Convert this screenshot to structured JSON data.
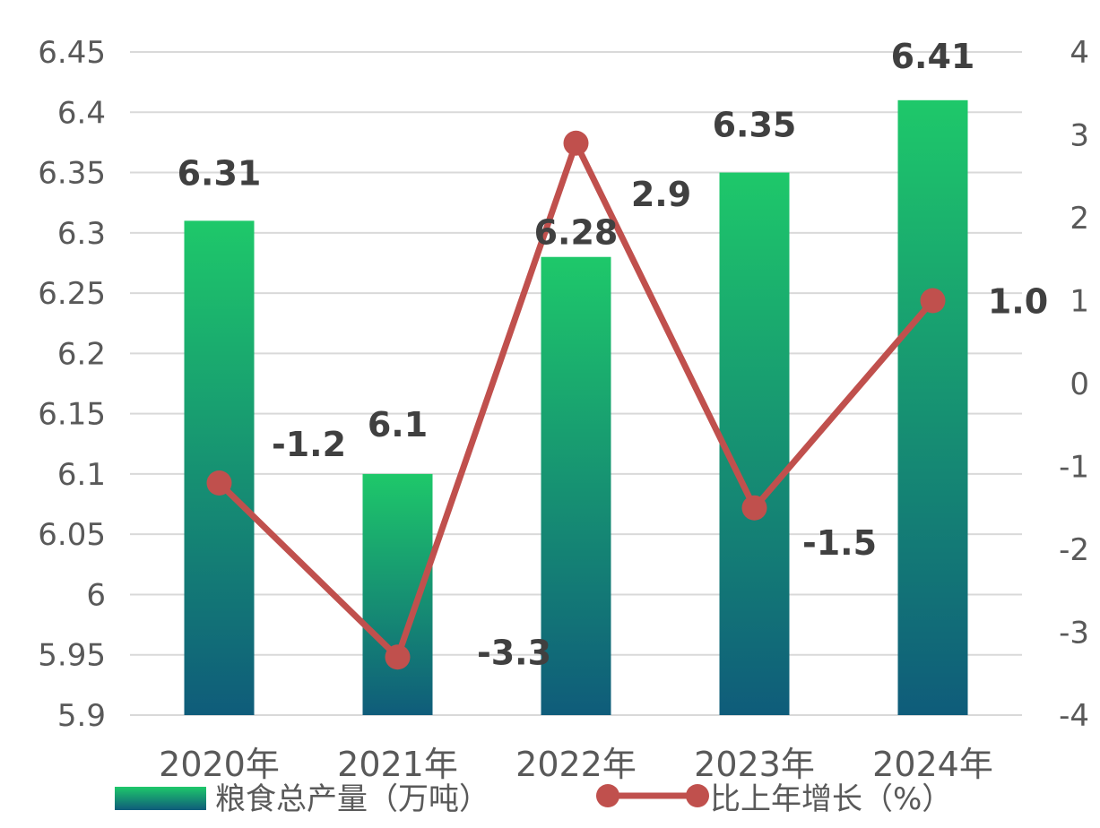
{
  "chart_data": {
    "type": "bar",
    "categories": [
      "2020年",
      "2021年",
      "2022年",
      "2023年",
      "2024年"
    ],
    "series": [
      {
        "name": "粮食总产量（万吨）",
        "type": "bar",
        "axis": "left",
        "values": [
          6.31,
          6.1,
          6.28,
          6.35,
          6.41
        ],
        "labels": [
          "6.31",
          "6.1",
          "6.28",
          "6.35",
          "6.41"
        ],
        "color_top": "#1ec86a",
        "color_bottom": "#0f5c7a"
      },
      {
        "name": "比上年增长（%）",
        "type": "line",
        "axis": "right",
        "values": [
          -1.2,
          -3.3,
          2.9,
          -1.5,
          1.0
        ],
        "labels": [
          "-1.2",
          "-3.3",
          "2.9",
          "-1.5",
          "1.0"
        ],
        "color": "#c0504d"
      }
    ],
    "y_left": {
      "min": 5.9,
      "max": 6.45,
      "ticks": [
        "5.9",
        "5.95",
        "6",
        "6.05",
        "6.1",
        "6.15",
        "6.2",
        "6.25",
        "6.3",
        "6.35",
        "6.4",
        "6.45"
      ]
    },
    "y_right": {
      "min": -4,
      "max": 4,
      "ticks": [
        "-4",
        "-3",
        "-2",
        "-1",
        "0",
        "1",
        "2",
        "3",
        "4"
      ]
    },
    "grid": true,
    "legend": "bottom"
  }
}
